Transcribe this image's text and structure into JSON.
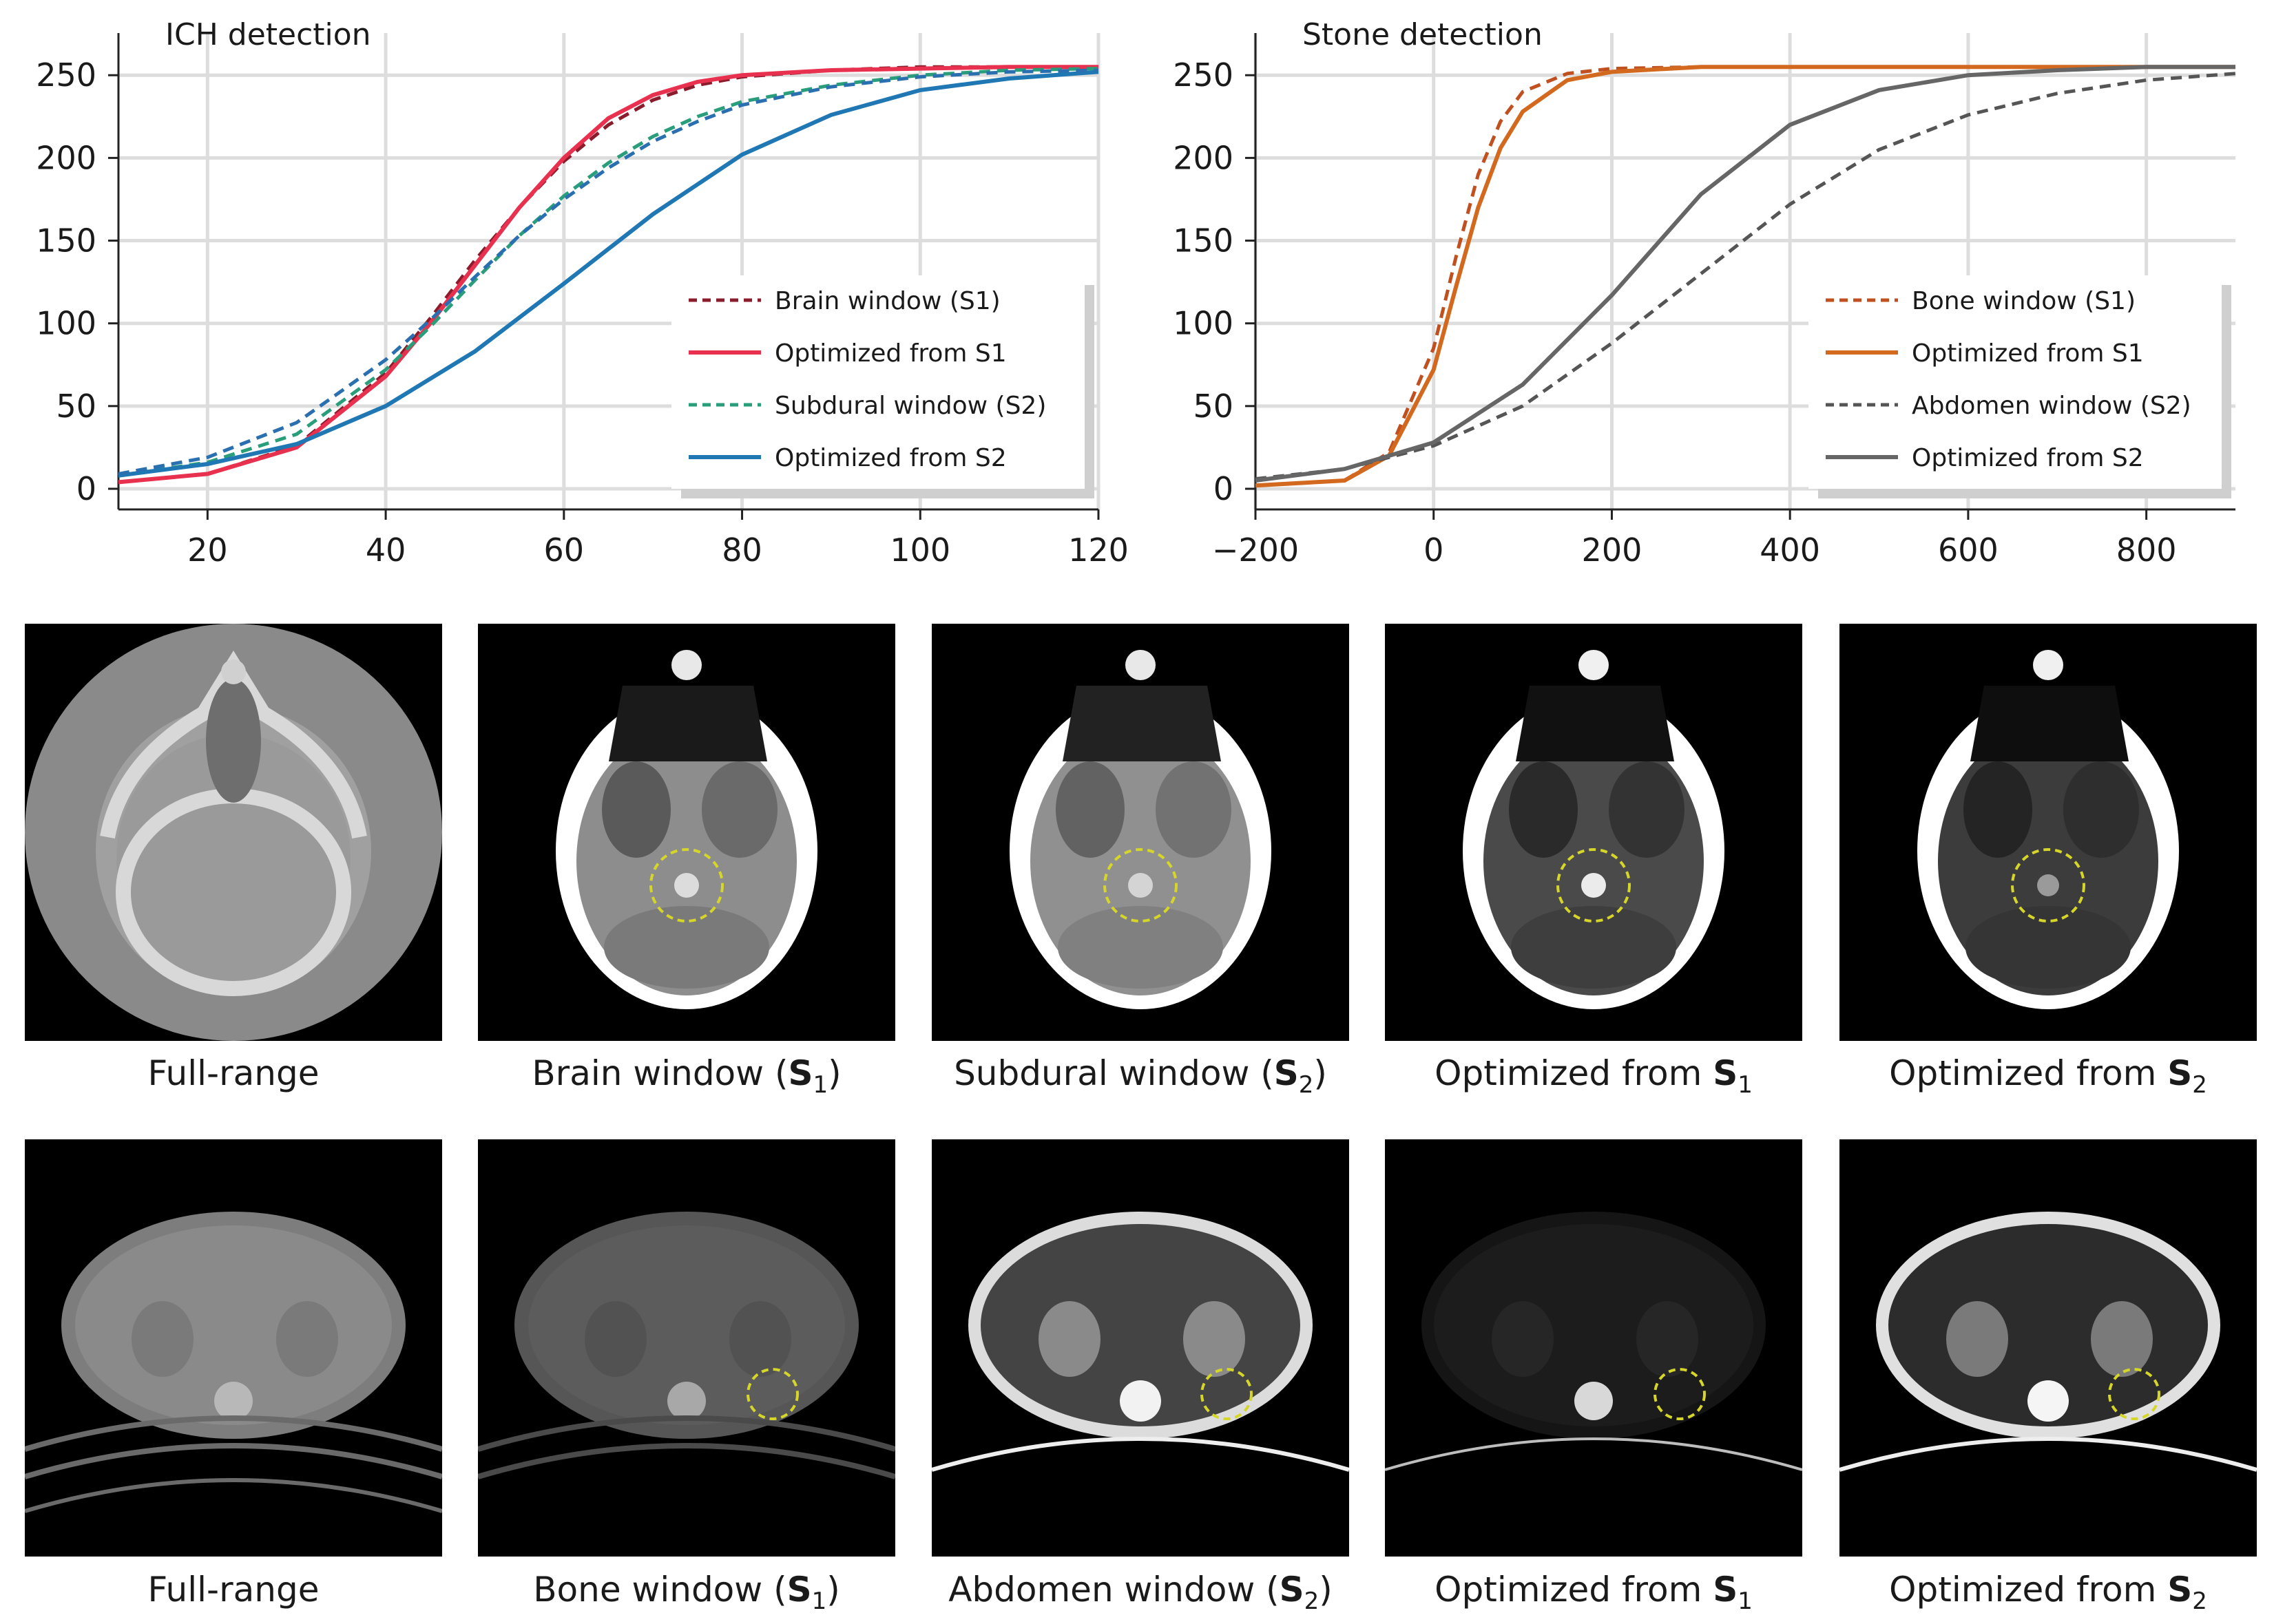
{
  "chart_data": [
    {
      "type": "line",
      "title": "ICH detection",
      "xlim": [
        10,
        120
      ],
      "ylim": [
        0,
        255
      ],
      "xticks": [
        20,
        40,
        60,
        80,
        100,
        120
      ],
      "yticks": [
        0,
        50,
        100,
        150,
        200,
        250
      ],
      "grid": true,
      "legend_position": "lower-right",
      "series": [
        {
          "name": "Brain window (S1)",
          "style": "dashed",
          "color": "#8a1c2b",
          "x": [
            10,
            20,
            30,
            40,
            45,
            50,
            55,
            60,
            65,
            70,
            75,
            80,
            90,
            100,
            110,
            120
          ],
          "y": [
            4,
            9,
            26,
            70,
            103,
            138,
            170,
            198,
            220,
            235,
            244,
            249,
            253,
            255,
            255,
            255
          ]
        },
        {
          "name": "Optimized from S1",
          "style": "solid",
          "color": "#e8304f",
          "x": [
            10,
            20,
            30,
            40,
            45,
            50,
            55,
            60,
            65,
            70,
            75,
            80,
            90,
            100,
            110,
            120
          ],
          "y": [
            4,
            9,
            25,
            68,
            100,
            135,
            170,
            200,
            224,
            238,
            246,
            250,
            253,
            254,
            255,
            255
          ]
        },
        {
          "name": "Subdural window (S2)",
          "style": "dashed",
          "color": "#2a9d7a",
          "x": [
            10,
            20,
            30,
            40,
            45,
            50,
            55,
            60,
            65,
            70,
            75,
            80,
            90,
            100,
            110,
            120
          ],
          "y": [
            8,
            16,
            33,
            72,
            98,
            126,
            153,
            177,
            197,
            213,
            225,
            234,
            244,
            250,
            253,
            254
          ]
        },
        {
          "name": "Optimized from S2",
          "style": "solid",
          "color": "#1f77b4",
          "x": [
            10,
            20,
            30,
            40,
            50,
            60,
            70,
            80,
            90,
            100,
            110,
            120
          ],
          "y": [
            8,
            15,
            27,
            50,
            83,
            124,
            166,
            202,
            226,
            241,
            248,
            252
          ]
        },
        {
          "name": "",
          "style": "dashed",
          "color": "#2a6fb0",
          "x": [
            10,
            20,
            30,
            40,
            45,
            50,
            55,
            60,
            65,
            70,
            75,
            80,
            90,
            100,
            110,
            120
          ],
          "y": [
            9,
            19,
            40,
            78,
            102,
            128,
            153,
            175,
            194,
            210,
            222,
            232,
            243,
            249,
            252,
            253
          ]
        }
      ],
      "legend": [
        "Brain window (S1)",
        "Optimized from S1",
        "Subdural window (S2)",
        "Optimized from S2"
      ]
    },
    {
      "type": "line",
      "title": "Stone detection",
      "xlim": [
        -200,
        900
      ],
      "ylim": [
        0,
        255
      ],
      "xticks": [
        -200,
        0,
        200,
        400,
        600,
        800
      ],
      "yticks": [
        0,
        50,
        100,
        150,
        200,
        250
      ],
      "grid": true,
      "legend_position": "lower-right",
      "series": [
        {
          "name": "Bone window (S1)",
          "style": "dashed",
          "color": "#c0501f",
          "x": [
            -200,
            -100,
            -50,
            0,
            25,
            50,
            75,
            100,
            150,
            200,
            300,
            400,
            600,
            900
          ],
          "y": [
            2,
            5,
            22,
            85,
            140,
            190,
            222,
            240,
            251,
            254,
            255,
            255,
            255,
            255
          ]
        },
        {
          "name": "Optimized from S1",
          "style": "solid",
          "color": "#d2691e",
          "x": [
            -200,
            -100,
            -50,
            0,
            25,
            50,
            75,
            100,
            150,
            200,
            300,
            400,
            600,
            900
          ],
          "y": [
            2,
            5,
            20,
            72,
            122,
            170,
            206,
            228,
            247,
            252,
            255,
            255,
            255,
            255
          ]
        },
        {
          "name": "Abdomen window (S2)",
          "style": "dashed",
          "color": "#555555",
          "x": [
            -200,
            -100,
            0,
            100,
            200,
            300,
            400,
            500,
            600,
            700,
            800,
            900
          ],
          "y": [
            6,
            12,
            26,
            50,
            88,
            130,
            172,
            205,
            226,
            239,
            247,
            251
          ]
        },
        {
          "name": "Optimized from S2",
          "style": "solid",
          "color": "#666666",
          "x": [
            -200,
            -100,
            0,
            100,
            200,
            300,
            400,
            500,
            600,
            700,
            800,
            900
          ],
          "y": [
            5,
            12,
            28,
            63,
            117,
            178,
            220,
            241,
            250,
            253,
            255,
            255
          ]
        }
      ],
      "legend": [
        "Bone window (S1)",
        "Optimized from S1",
        "Abdomen window (S2)",
        "Optimized from S2"
      ]
    }
  ],
  "rows": [
    {
      "name": "head-ct",
      "captions": [
        {
          "text": "Full-range",
          "bold": "",
          "sub": ""
        },
        {
          "text": "Brain window (",
          "bold": "S",
          "sub": "1",
          "tail": ")"
        },
        {
          "text": "Subdural window (",
          "bold": "S",
          "sub": "2",
          "tail": ")"
        },
        {
          "text": "Optimized from ",
          "bold": "S",
          "sub": "1",
          "tail": ""
        },
        {
          "text": "Optimized from ",
          "bold": "S",
          "sub": "2",
          "tail": ""
        }
      ]
    },
    {
      "name": "abdomen-ct",
      "captions": [
        {
          "text": "Full-range",
          "bold": "",
          "sub": ""
        },
        {
          "text": "Bone window (",
          "bold": "S",
          "sub": "1",
          "tail": ")"
        },
        {
          "text": "Abdomen window (",
          "bold": "S",
          "sub": "2",
          "tail": ")"
        },
        {
          "text": "Optimized from ",
          "bold": "S",
          "sub": "1",
          "tail": ""
        },
        {
          "text": "Optimized from ",
          "bold": "S",
          "sub": "2",
          "tail": ""
        }
      ]
    }
  ],
  "colors": {
    "grid": "#dddddd",
    "axis": "#222222",
    "roi_circle": "#d6d62a"
  }
}
